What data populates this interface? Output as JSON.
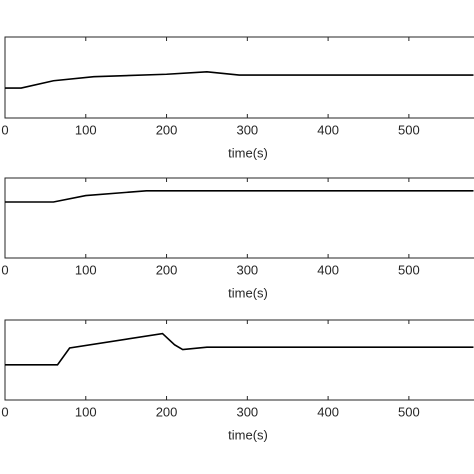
{
  "chart_data": [
    {
      "type": "line",
      "x_label": "time(s)",
      "x": [
        0,
        20,
        60,
        110,
        200,
        250,
        290,
        580
      ],
      "series": [
        {
          "color": "#000000",
          "values": [
            0.37,
            0.37,
            0.46,
            0.51,
            0.54,
            0.57,
            0.53,
            0.53
          ]
        }
      ],
      "xlim": [
        0,
        580
      ],
      "xticks": [
        0,
        100,
        200,
        300,
        400,
        500
      ],
      "ylim": [
        0,
        1
      ]
    },
    {
      "type": "line",
      "x_label": "time(s)",
      "x": [
        0,
        60,
        100,
        175,
        580
      ],
      "series": [
        {
          "color": "#000000",
          "values": [
            0.7,
            0.7,
            0.78,
            0.84,
            0.84
          ]
        }
      ],
      "xlim": [
        0,
        580
      ],
      "xticks": [
        0,
        100,
        200,
        300,
        400,
        500
      ],
      "ylim": [
        0,
        1
      ]
    },
    {
      "type": "line",
      "x_label": "time(s)",
      "x": [
        0,
        65,
        80,
        195,
        210,
        220,
        250,
        580
      ],
      "series": [
        {
          "color": "#000000",
          "values": [
            0.44,
            0.44,
            0.65,
            0.83,
            0.69,
            0.63,
            0.66,
            0.66
          ]
        }
      ],
      "xlim": [
        0,
        580
      ],
      "xticks": [
        0,
        100,
        200,
        300,
        400,
        500
      ],
      "ylim": [
        0,
        1
      ]
    }
  ]
}
